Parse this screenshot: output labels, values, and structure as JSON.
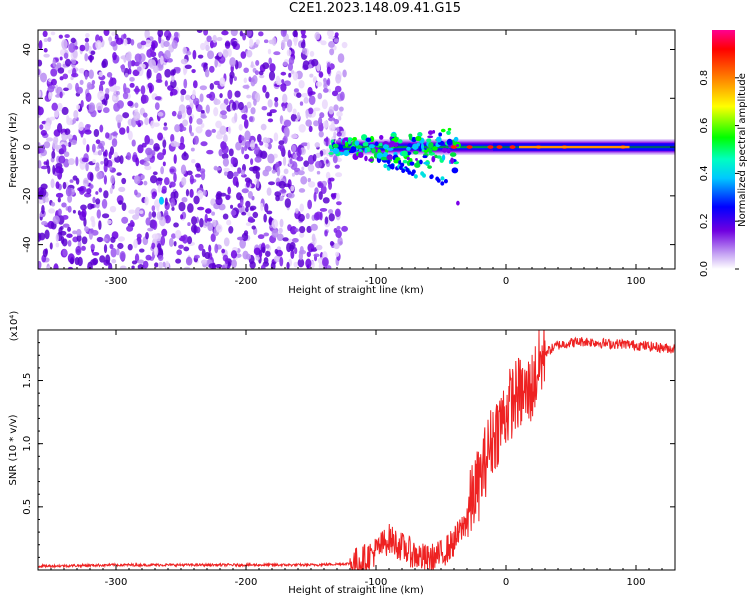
{
  "title": "C2E1.2023.148.09.41.G15",
  "colors": {
    "snr_line": "#ee2222",
    "axis": "#000000",
    "background": "#ffffff"
  },
  "chart_data": [
    {
      "type": "heatmap",
      "id": "spectrogram",
      "xlabel": "Height of straight line (km)",
      "ylabel": "Frequency (Hz)",
      "xlim": [
        -360,
        130
      ],
      "ylim": [
        -50,
        48
      ],
      "xticks": [
        -300,
        -200,
        -100,
        0,
        100
      ],
      "yticks": [
        -40,
        -20,
        0,
        20,
        40
      ],
      "grid": false,
      "colorbar": {
        "label": "Normalized spectral amplitude",
        "range": [
          0.0,
          1.0
        ],
        "ticks": [
          "0.0",
          "0.2",
          "0.4",
          "0.6",
          "0.8"
        ],
        "tick_values": [
          0.0,
          0.2,
          0.4,
          0.6,
          0.8
        ],
        "colormap": [
          "#ffffff",
          "#d8c0f8",
          "#7b00e8",
          "#0000ff",
          "#00ffff",
          "#00ff00",
          "#ffff00",
          "#ff8800",
          "#ff0000",
          "#ff00a0"
        ]
      },
      "features": {
        "noise_region_x": [
          -360,
          -130
        ],
        "signal_line_x": [
          -130,
          130
        ],
        "signal_frequency_hz": 0
      }
    },
    {
      "type": "line",
      "id": "snr",
      "xlabel": "Height of straight line (km)",
      "ylabel": "SNR (10 * v/v)",
      "multiplier_label": "(x10⁴)",
      "xlim": [
        -360,
        130
      ],
      "ylim": [
        0,
        1.9
      ],
      "xticks": [
        -300,
        -200,
        -100,
        0,
        100
      ],
      "yticks": [
        0.5,
        1.0,
        1.5
      ],
      "ytick_labels": [
        "0.5",
        "1.0",
        "1.5"
      ],
      "grid": false,
      "series": [
        {
          "x": [
            -360,
            -300,
            -250,
            -200,
            -150,
            -120,
            -110,
            -100,
            -90,
            -80,
            -70,
            -60,
            -50,
            -40,
            -30,
            -25,
            -20,
            -15,
            -10,
            -5,
            0,
            5,
            10,
            15,
            20,
            25,
            30,
            40,
            50,
            60,
            70,
            80,
            90,
            100,
            110,
            120,
            130
          ],
          "y": [
            0.03,
            0.04,
            0.04,
            0.04,
            0.04,
            0.05,
            0.08,
            0.15,
            0.25,
            0.18,
            0.12,
            0.08,
            0.12,
            0.22,
            0.4,
            0.6,
            0.7,
            0.9,
            1.05,
            1.15,
            1.25,
            1.35,
            1.4,
            1.38,
            1.45,
            1.6,
            1.72,
            1.78,
            1.8,
            1.81,
            1.8,
            1.79,
            1.79,
            1.78,
            1.77,
            1.76,
            1.75
          ]
        }
      ]
    }
  ]
}
